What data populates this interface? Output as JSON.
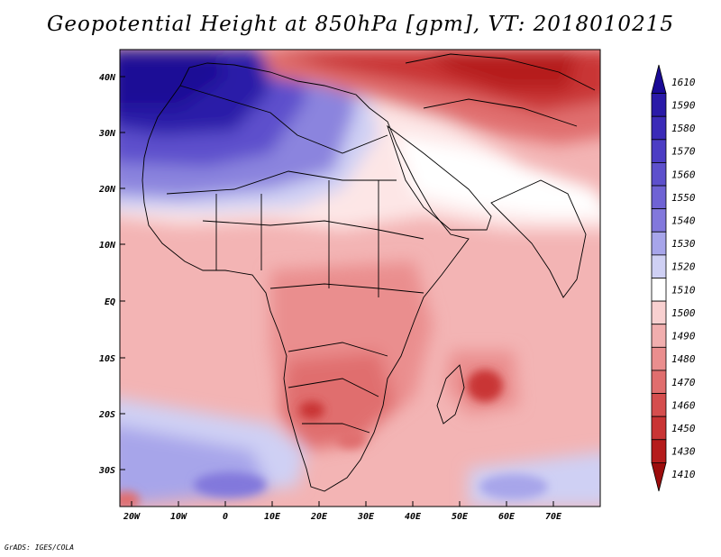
{
  "title": "Geopotential Height at 850hPa [gpm], VT: 2018010215",
  "credit": "GrADS: IGES/COLA",
  "lat_labels": [
    "40N",
    "30N",
    "20N",
    "10N",
    "EQ",
    "10S",
    "20S",
    "30S"
  ],
  "lon_labels": [
    "20W",
    "10W",
    "0",
    "10E",
    "20E",
    "30E",
    "40E",
    "50E",
    "60E",
    "70E"
  ],
  "colorbar": {
    "labels": [
      "1610",
      "1590",
      "1580",
      "1570",
      "1560",
      "1550",
      "1540",
      "1530",
      "1520",
      "1510",
      "1500",
      "1490",
      "1480",
      "1470",
      "1460",
      "1450",
      "1430",
      "1410"
    ],
    "colors": [
      "#1a0a96",
      "#2a1aa8",
      "#3b2bb8",
      "#4c3dc4",
      "#5d50cc",
      "#6f63d4",
      "#8278dc",
      "#a7a5ea",
      "#cfd0f4",
      "#ffffff",
      "#f8d0d0",
      "#f1aeae",
      "#ea8e8e",
      "#e06e6e",
      "#d54e4e",
      "#c93434",
      "#b51c1c",
      "#9c0c0c"
    ]
  },
  "colors": {
    "sahara_high": "#1a0a96",
    "low_red": "#c93434",
    "frame": "#000000"
  }
}
